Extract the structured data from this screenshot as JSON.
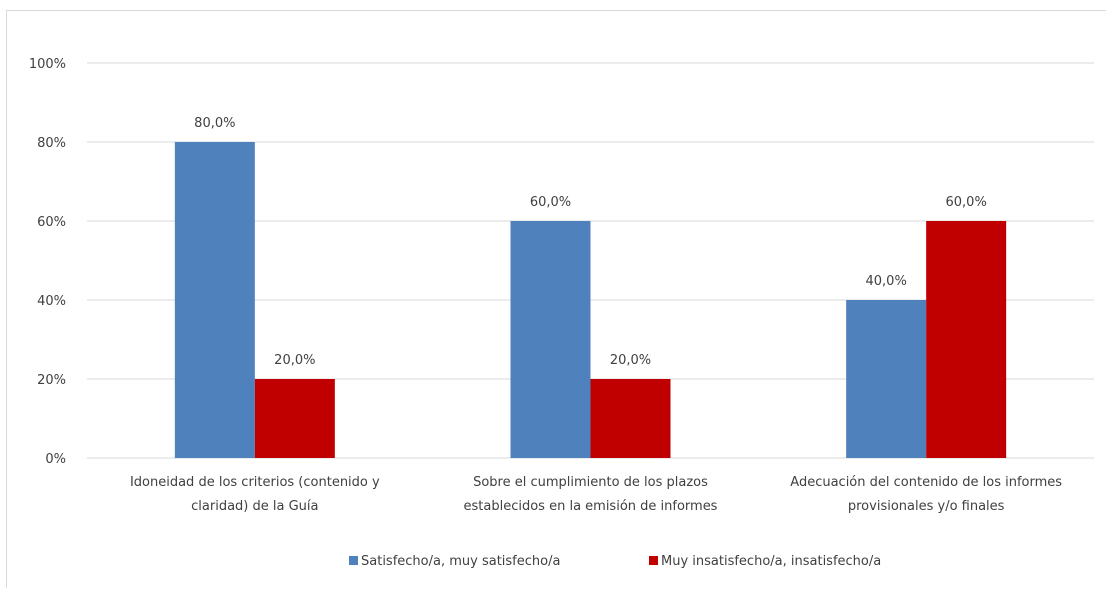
{
  "chart_data": {
    "type": "bar",
    "categories": [
      [
        "Idoneidad de los criterios (contenido y",
        "claridad) de la Guía"
      ],
      [
        "Sobre el cumplimiento de los plazos",
        "establecidos en la emisión de informes"
      ],
      [
        "Adecuación del contenido de los informes",
        "provisionales y/o finales"
      ]
    ],
    "series": [
      {
        "name": "Satisfecho/a, muy satisfecho/a",
        "color": "#4f81bd",
        "values": [
          80.0,
          60.0,
          40.0
        ],
        "labels": [
          "80,0%",
          "60,0%",
          "40,0%"
        ]
      },
      {
        "name": "Muy insatisfecho/a, insatisfecho/a",
        "color": "#c00000",
        "values": [
          20.0,
          20.0,
          60.0
        ],
        "labels": [
          "20,0%",
          "20,0%",
          "60,0%"
        ]
      }
    ],
    "ylim": [
      0,
      100
    ],
    "yticks": [
      0,
      20,
      40,
      60,
      80,
      100
    ],
    "ytick_labels": [
      "0%",
      "20%",
      "40%",
      "60%",
      "80%",
      "100%"
    ],
    "grid": true,
    "gridline_color": "#d9d9d9",
    "legend_position": "bottom",
    "title": "",
    "xlabel": "",
    "ylabel": ""
  }
}
